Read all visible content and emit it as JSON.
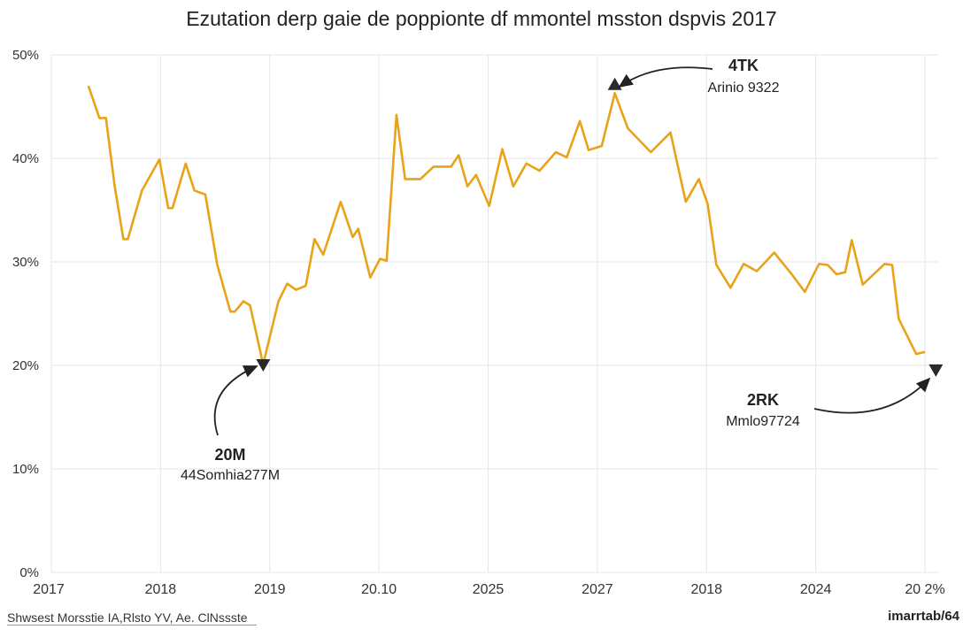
{
  "chart_data": {
    "type": "line",
    "title": "Ezutation derp gaie de poppionte df mmontel msston dspvis 2017",
    "xlabel": "",
    "ylabel": "",
    "x_tick_labels": [
      "2017",
      "2018",
      "2019",
      "20.10",
      "2025",
      "2027",
      "2018",
      "2024",
      "20 2%"
    ],
    "y_tick_labels": [
      "0%",
      "10%",
      "20%",
      "30%",
      "40%",
      "50%"
    ],
    "y_ticks": [
      0,
      10,
      20,
      30,
      40,
      50
    ],
    "ylim": [
      0,
      50
    ],
    "xlim": [
      0,
      8
    ],
    "grid": true,
    "line_color": "#E8A317",
    "series": [
      {
        "x": [
          0.34,
          0.44,
          0.5,
          0.58,
          0.66,
          0.7,
          0.83,
          0.99,
          1.07,
          1.11,
          1.23,
          1.31,
          1.41,
          1.52,
          1.64,
          1.68,
          1.76,
          1.82,
          1.94,
          2.08,
          2.16,
          2.24,
          2.33,
          2.41,
          2.49,
          2.65,
          2.76,
          2.81,
          2.92,
          3.01,
          3.07,
          3.16,
          3.24,
          3.38,
          3.5,
          3.66,
          3.73,
          3.81,
          3.89,
          4.01,
          4.13,
          4.23,
          4.35,
          4.47,
          4.62,
          4.72,
          4.84,
          4.92,
          5.04,
          5.16,
          5.28,
          5.49,
          5.67,
          5.81,
          5.93,
          6.01,
          6.09,
          6.22,
          6.34,
          6.46,
          6.62,
          6.78,
          6.9,
          7.03,
          7.11,
          7.19,
          7.27,
          7.33,
          7.43,
          7.63,
          7.7,
          7.76,
          7.92,
          8.0
        ],
        "values": [
          47.0,
          43.9,
          43.9,
          37.3,
          32.2,
          32.2,
          36.9,
          39.9,
          35.2,
          35.2,
          39.5,
          36.9,
          36.5,
          29.7,
          25.2,
          25.2,
          26.2,
          25.8,
          20.1,
          26.2,
          27.9,
          27.3,
          27.7,
          32.2,
          30.7,
          35.8,
          32.4,
          33.2,
          28.5,
          30.3,
          30.1,
          44.2,
          38.0,
          38.0,
          39.2,
          39.2,
          40.3,
          37.3,
          38.4,
          35.4,
          40.9,
          37.3,
          39.5,
          38.8,
          40.6,
          40.1,
          43.6,
          40.8,
          41.2,
          46.3,
          42.9,
          40.6,
          42.5,
          35.8,
          38.0,
          35.6,
          29.7,
          27.5,
          29.8,
          29.1,
          30.9,
          28.8,
          27.1,
          29.8,
          29.7,
          28.8,
          29.0,
          32.1,
          27.8,
          29.8,
          29.7,
          24.5,
          21.1,
          21.3
        ]
      }
    ],
    "annotations": [
      {
        "label": "4TK",
        "sublabel": "Arinio 9322",
        "x": 5.16,
        "y": 47.2,
        "marker": "triangle-up"
      },
      {
        "label": "20M",
        "sublabel": "44Somhia277M",
        "x": 1.94,
        "y": 20.0,
        "marker": "triangle-down"
      },
      {
        "label": "2RK",
        "sublabel": "Mmlo97724",
        "x": 8.1,
        "y": 19.5,
        "marker": "triangle-down"
      }
    ]
  },
  "footer": {
    "source": "Shwsest Morsstie IA,Rlsto YV, Ae. ClNssste",
    "credit": "imarrtab/64"
  }
}
